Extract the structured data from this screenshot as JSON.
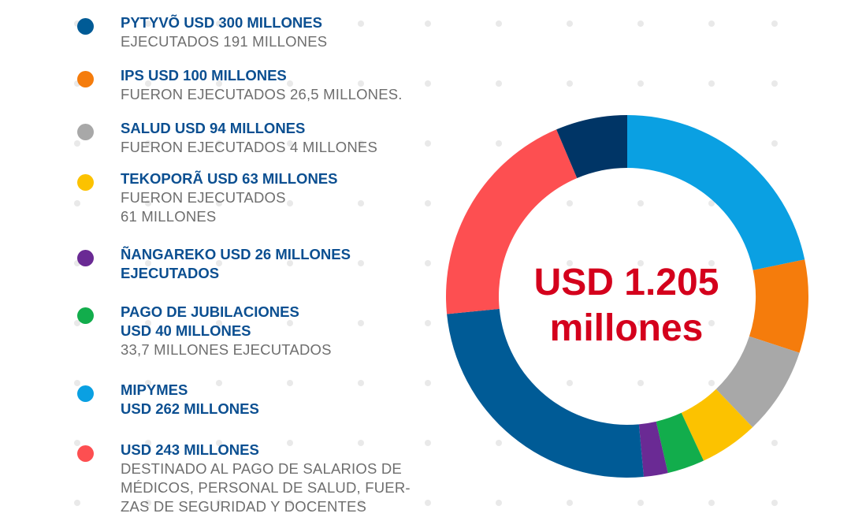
{
  "colors": {
    "background": "#ffffff",
    "title_text": "#0b4f91",
    "sub_text": "#6e6e6e",
    "center_text": "#d4001c",
    "dots": "#e9e9e9"
  },
  "center_label": {
    "line1": "USD 1.205",
    "line2": "millones"
  },
  "legend": [
    {
      "color": "#005b96",
      "title": "PYTYVÕ USD 300 MILLONES",
      "sub": "EJECUTADOS 191 MILLONES"
    },
    {
      "color": "#f57c0c",
      "title": "IPS USD 100 MILLONES",
      "sub": "FUERON EJECUTADOS 26,5 MILLONES."
    },
    {
      "color": "#a8a8a8",
      "title": "SALUD USD 94 MILLONES",
      "sub": "FUERON EJECUTADOS 4 MILLONES"
    },
    {
      "color": "#fcc200",
      "title": "TEKOPORÃ USD 63 MILLONES",
      "sub": "FUERON EJECUTADOS\n61 MILLONES"
    },
    {
      "color": "#6a2a94",
      "title": "ÑANGAREKO USD 26 MILLONES\nEJECUTADOS",
      "sub": ""
    },
    {
      "color": "#12ad4c",
      "title": "PAGO DE JUBILACIONES\nUSD 40 MILLONES",
      "sub": "33,7 MILLONES EJECUTADOS"
    },
    {
      "color": "#0aa0e2",
      "title": "MIPYMES\nUSD 262 MILLONES",
      "sub": ""
    },
    {
      "color": "#fd4f51",
      "title": "USD 243 MILLONES",
      "sub": "DESTINADO AL PAGO DE SALARIOS DE\nMÉDICOS, PERSONAL DE SALUD, FUER-\nZAS DE SEGURIDAD Y DOCENTES"
    }
  ],
  "chart_data": {
    "type": "pie",
    "variant": "donut",
    "title": "",
    "legend_placement": "left",
    "slices": [
      {
        "label": "MIPYMES USD 262 MILLONES",
        "value": 262,
        "color": "#0aa0e2"
      },
      {
        "label": "IPS USD 100 MILLONES",
        "value": 100,
        "color": "#f57c0c"
      },
      {
        "label": "SALUD USD 94 MILLONES",
        "value": 94,
        "color": "#a8a8a8"
      },
      {
        "label": "TEKOPORÃ USD 63 MILLONES",
        "value": 63,
        "color": "#fcc200"
      },
      {
        "label": "PAGO DE JUBILACIONES USD 40 MILLONES",
        "value": 40,
        "color": "#12ad4c"
      },
      {
        "label": "ÑANGAREKO USD 26 MILLONES",
        "value": 26,
        "color": "#6a2a94"
      },
      {
        "label": "PYTYVÕ USD 300 MILLONES",
        "value": 300,
        "color": "#005b96"
      },
      {
        "label": "USD 243 MILLONES",
        "value": 243,
        "color": "#fd4f51"
      },
      {
        "label": "",
        "value": 77,
        "color": "#003566"
      }
    ]
  }
}
